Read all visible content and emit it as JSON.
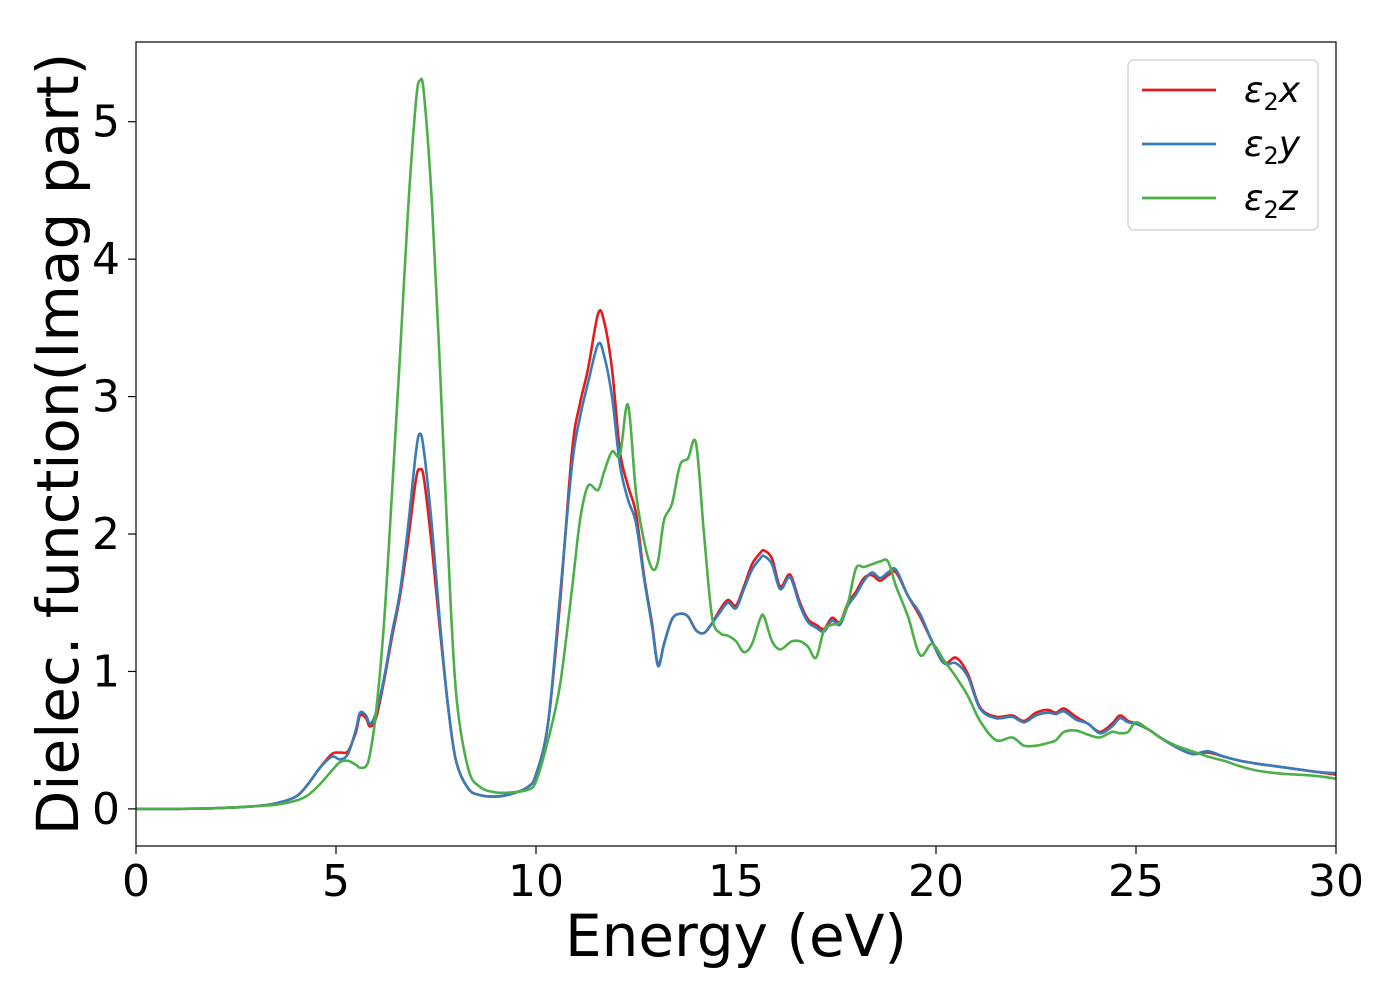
{
  "chart_data": {
    "type": "line",
    "title": "",
    "xlabel": "Energy (eV)",
    "ylabel": "Dielec. function(Imag part)",
    "xlim": [
      0,
      30
    ],
    "ylim": [
      -0.27,
      5.58
    ],
    "xticks": [
      0,
      5,
      10,
      15,
      20,
      25,
      30
    ],
    "yticks": [
      0,
      1,
      2,
      3,
      4,
      5
    ],
    "grid": false,
    "legend_position": "top-right",
    "series": [
      {
        "name": "ε2x",
        "label_base": "ε",
        "label_sub": "2",
        "label_tail": "x",
        "color": "#e41a1c",
        "x": [
          0,
          1,
          2,
          3,
          3.5,
          4,
          4.3,
          4.6,
          4.9,
          5.1,
          5.3,
          5.5,
          5.6,
          5.75,
          5.85,
          6,
          6.2,
          6.4,
          6.6,
          6.8,
          7,
          7.1,
          7.2,
          7.4,
          7.6,
          7.8,
          8,
          8.3,
          8.6,
          9,
          9.4,
          9.8,
          10,
          10.3,
          10.6,
          10.9,
          11.1,
          11.3,
          11.55,
          11.7,
          11.9,
          12.1,
          12.3,
          12.5,
          12.7,
          12.9,
          13.05,
          13.2,
          13.4,
          13.6,
          13.8,
          14,
          14.2,
          14.4,
          14.6,
          14.8,
          15,
          15.2,
          15.4,
          15.6,
          15.7,
          15.9,
          16.1,
          16.3,
          16.4,
          16.6,
          16.8,
          17,
          17.2,
          17.4,
          17.6,
          17.8,
          18,
          18.2,
          18.4,
          18.6,
          18.8,
          19,
          19.3,
          19.6,
          19.9,
          20.2,
          20.5,
          20.8,
          21.1,
          21.5,
          21.9,
          22.2,
          22.5,
          22.8,
          23,
          23.2,
          23.5,
          23.8,
          24.1,
          24.4,
          24.6,
          24.8,
          25,
          25.3,
          25.6,
          26,
          26.4,
          26.8,
          27.2,
          27.6,
          28,
          28.5,
          29,
          29.5,
          30
        ],
        "y": [
          0,
          0,
          0.005,
          0.02,
          0.04,
          0.09,
          0.18,
          0.3,
          0.4,
          0.41,
          0.42,
          0.56,
          0.68,
          0.66,
          0.6,
          0.66,
          0.93,
          1.25,
          1.55,
          1.95,
          2.4,
          2.47,
          2.4,
          1.9,
          1.3,
          0.75,
          0.35,
          0.15,
          0.1,
          0.09,
          0.11,
          0.16,
          0.25,
          0.62,
          1.5,
          2.6,
          2.95,
          3.2,
          3.6,
          3.55,
          3.2,
          2.6,
          2.35,
          2.15,
          1.7,
          1.35,
          1.05,
          1.2,
          1.38,
          1.42,
          1.4,
          1.3,
          1.28,
          1.35,
          1.45,
          1.52,
          1.48,
          1.62,
          1.78,
          1.86,
          1.88,
          1.82,
          1.62,
          1.7,
          1.68,
          1.5,
          1.38,
          1.34,
          1.31,
          1.39,
          1.36,
          1.5,
          1.58,
          1.68,
          1.7,
          1.66,
          1.7,
          1.72,
          1.55,
          1.4,
          1.22,
          1.06,
          1.1,
          0.98,
          0.74,
          0.67,
          0.68,
          0.64,
          0.7,
          0.72,
          0.7,
          0.73,
          0.67,
          0.62,
          0.56,
          0.62,
          0.68,
          0.64,
          0.62,
          0.58,
          0.52,
          0.45,
          0.4,
          0.41,
          0.38,
          0.35,
          0.33,
          0.31,
          0.29,
          0.27,
          0.25
        ]
      },
      {
        "name": "ε2y",
        "label_base": "ε",
        "label_sub": "2",
        "label_tail": "y",
        "color": "#377eb8",
        "x": [
          0,
          1,
          2,
          3,
          3.5,
          4,
          4.3,
          4.6,
          4.9,
          5.1,
          5.3,
          5.5,
          5.6,
          5.75,
          5.85,
          6,
          6.2,
          6.4,
          6.6,
          6.8,
          7,
          7.1,
          7.2,
          7.4,
          7.6,
          7.8,
          8,
          8.3,
          8.6,
          9,
          9.4,
          9.8,
          10,
          10.3,
          10.6,
          10.9,
          11.1,
          11.3,
          11.55,
          11.7,
          11.9,
          12.1,
          12.3,
          12.5,
          12.7,
          12.9,
          13.05,
          13.2,
          13.4,
          13.6,
          13.8,
          14,
          14.2,
          14.4,
          14.6,
          14.8,
          15,
          15.2,
          15.4,
          15.6,
          15.7,
          15.9,
          16.1,
          16.3,
          16.4,
          16.6,
          16.8,
          17,
          17.2,
          17.4,
          17.6,
          17.8,
          18,
          18.2,
          18.4,
          18.6,
          18.8,
          19,
          19.3,
          19.6,
          19.9,
          20.2,
          20.5,
          20.8,
          21.1,
          21.5,
          21.9,
          22.2,
          22.5,
          22.8,
          23,
          23.2,
          23.5,
          23.8,
          24.1,
          24.4,
          24.6,
          24.8,
          25,
          25.3,
          25.6,
          26,
          26.4,
          26.8,
          27.2,
          27.6,
          28,
          28.5,
          29,
          29.5,
          30
        ],
        "y": [
          0,
          0,
          0.005,
          0.02,
          0.04,
          0.09,
          0.18,
          0.3,
          0.38,
          0.36,
          0.4,
          0.58,
          0.7,
          0.68,
          0.62,
          0.7,
          0.95,
          1.28,
          1.58,
          2.05,
          2.6,
          2.73,
          2.6,
          2.05,
          1.35,
          0.75,
          0.35,
          0.15,
          0.1,
          0.09,
          0.11,
          0.16,
          0.25,
          0.62,
          1.55,
          2.5,
          2.85,
          3.1,
          3.38,
          3.3,
          3.0,
          2.5,
          2.25,
          2.08,
          1.68,
          1.33,
          1.04,
          1.2,
          1.38,
          1.42,
          1.4,
          1.3,
          1.28,
          1.35,
          1.43,
          1.5,
          1.46,
          1.6,
          1.74,
          1.82,
          1.84,
          1.78,
          1.6,
          1.68,
          1.66,
          1.48,
          1.36,
          1.32,
          1.29,
          1.37,
          1.34,
          1.48,
          1.56,
          1.66,
          1.72,
          1.68,
          1.72,
          1.74,
          1.55,
          1.42,
          1.22,
          1.06,
          1.06,
          0.96,
          0.73,
          0.66,
          0.67,
          0.63,
          0.68,
          0.7,
          0.69,
          0.71,
          0.65,
          0.62,
          0.55,
          0.6,
          0.66,
          0.63,
          0.62,
          0.58,
          0.52,
          0.45,
          0.4,
          0.42,
          0.38,
          0.35,
          0.33,
          0.31,
          0.29,
          0.27,
          0.26
        ]
      },
      {
        "name": "ε2z",
        "label_base": "ε",
        "label_sub": "2",
        "label_tail": "z",
        "color": "#4daf4a",
        "x": [
          0,
          1,
          2,
          3,
          3.5,
          4,
          4.3,
          4.6,
          4.9,
          5.1,
          5.3,
          5.5,
          5.6,
          5.75,
          5.85,
          6,
          6.2,
          6.4,
          6.6,
          6.8,
          7,
          7.1,
          7.2,
          7.4,
          7.6,
          7.8,
          8,
          8.3,
          8.6,
          9,
          9.4,
          9.8,
          10,
          10.3,
          10.6,
          10.9,
          11.1,
          11.3,
          11.55,
          11.7,
          11.9,
          12.1,
          12.3,
          12.5,
          12.7,
          12.9,
          13.05,
          13.2,
          13.4,
          13.6,
          13.8,
          14,
          14.2,
          14.4,
          14.6,
          14.8,
          15,
          15.2,
          15.4,
          15.6,
          15.7,
          15.9,
          16.1,
          16.3,
          16.4,
          16.6,
          16.8,
          17,
          17.2,
          17.4,
          17.6,
          17.8,
          18,
          18.2,
          18.4,
          18.6,
          18.8,
          19,
          19.3,
          19.6,
          19.9,
          20.2,
          20.5,
          20.8,
          21.1,
          21.5,
          21.9,
          22.2,
          22.5,
          22.8,
          23,
          23.2,
          23.5,
          23.8,
          24.1,
          24.4,
          24.6,
          24.8,
          25,
          25.3,
          25.6,
          26,
          26.4,
          26.8,
          27.2,
          27.6,
          28,
          28.5,
          29,
          29.5,
          30
        ],
        "y": [
          0,
          0,
          0.005,
          0.02,
          0.03,
          0.06,
          0.1,
          0.18,
          0.28,
          0.34,
          0.35,
          0.32,
          0.3,
          0.31,
          0.4,
          0.7,
          1.35,
          2.3,
          3.3,
          4.35,
          5.15,
          5.3,
          5.2,
          4.4,
          3.2,
          1.9,
          0.85,
          0.3,
          0.16,
          0.12,
          0.12,
          0.14,
          0.2,
          0.5,
          0.9,
          1.6,
          2.1,
          2.35,
          2.32,
          2.45,
          2.6,
          2.58,
          2.94,
          2.3,
          1.95,
          1.75,
          1.8,
          2.1,
          2.22,
          2.5,
          2.55,
          2.66,
          2.0,
          1.4,
          1.28,
          1.26,
          1.22,
          1.14,
          1.2,
          1.38,
          1.4,
          1.22,
          1.16,
          1.2,
          1.22,
          1.22,
          1.18,
          1.1,
          1.3,
          1.34,
          1.36,
          1.5,
          1.75,
          1.76,
          1.78,
          1.8,
          1.8,
          1.62,
          1.4,
          1.12,
          1.2,
          1.08,
          0.96,
          0.82,
          0.64,
          0.5,
          0.52,
          0.46,
          0.46,
          0.48,
          0.5,
          0.56,
          0.57,
          0.54,
          0.52,
          0.56,
          0.55,
          0.56,
          0.63,
          0.58,
          0.52,
          0.46,
          0.42,
          0.38,
          0.35,
          0.31,
          0.28,
          0.26,
          0.25,
          0.24,
          0.22
        ]
      }
    ]
  }
}
